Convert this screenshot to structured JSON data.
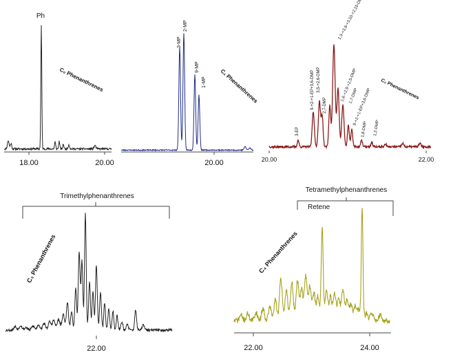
{
  "chart_data": [
    {
      "type": "line",
      "color": "#222222",
      "group_label": "C₀ Phenanthrenes",
      "peak_labels": [
        "Ph"
      ],
      "x_tick_labels": [
        "18.00",
        "20.00"
      ]
    },
    {
      "type": "line",
      "color": "#1f2a8a",
      "group_label": "C₁ Phenanthrenes",
      "peak_labels": [
        "3-MP",
        "2-MP",
        "9-MP",
        "1-MP"
      ],
      "x_tick_labels": [
        "20.00"
      ]
    },
    {
      "type": "line",
      "color": "#8b1a1a",
      "group_label": "C₂ Phenanthrenes",
      "peak_labels": [
        "3-EP",
        "9-+2-+1-EP+3,6-DMP",
        "3,5-+2,6-DMP",
        "2,7-DMP",
        "1,3-+3,9-+3,10-+2,10-DMP",
        "1,6-+2,9-+2,5-DMP",
        "1,7-DMP",
        "9-+2-+1-EP+3,6-DMP",
        "1,8-DMP",
        "1,2-DMP"
      ],
      "x_tick_labels": [
        "20.00",
        "22.00"
      ]
    },
    {
      "type": "line",
      "color": "#222222",
      "group_label": "C₃ Phenanthrenes",
      "bracket_label": "Trimethylphenanthrenes",
      "x_tick_labels": [
        "22.00"
      ]
    },
    {
      "type": "line",
      "color": "#a6a21e",
      "group_label": "C₄ Phenanthrenes",
      "bracket_label": "Tetramethylphenanthrenes",
      "peak_labels": [
        "Retene"
      ],
      "x_tick_labels": [
        "22.00",
        "24.00"
      ]
    }
  ]
}
